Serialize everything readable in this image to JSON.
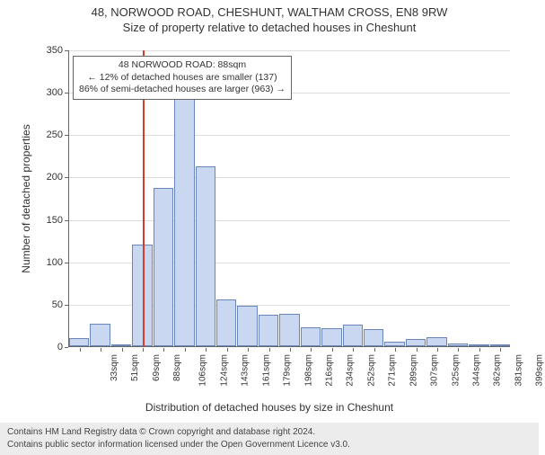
{
  "title_line1": "48, NORWOOD ROAD, CHESHUNT, WALTHAM CROSS, EN8 9RW",
  "title_line2": "Size of property relative to detached houses in Cheshunt",
  "ylabel": "Number of detached properties",
  "xlabel": "Distribution of detached houses by size in Cheshunt",
  "chart": {
    "type": "histogram",
    "ylim": [
      0,
      350
    ],
    "ytick_step": 50,
    "yticks": [
      0,
      50,
      100,
      150,
      200,
      250,
      300,
      350
    ],
    "xtick_labels": [
      "33sqm",
      "51sqm",
      "69sqm",
      "88sqm",
      "106sqm",
      "124sqm",
      "143sqm",
      "161sqm",
      "179sqm",
      "198sqm",
      "216sqm",
      "234sqm",
      "252sqm",
      "271sqm",
      "289sqm",
      "307sqm",
      "325sqm",
      "344sqm",
      "362sqm",
      "381sqm",
      "399sqm"
    ],
    "values": [
      10,
      27,
      2,
      120,
      187,
      292,
      212,
      55,
      48,
      37,
      38,
      22,
      21,
      25,
      20,
      5,
      9,
      11,
      3,
      0,
      2
    ],
    "bar_fill": "#c9d8f0",
    "bar_stroke": "#6a86b8",
    "grid_color": "#dddddd",
    "axis_color": "#666666",
    "background_color": "#ffffff",
    "reference_line": {
      "x_index": 3,
      "color": "#d43c2e"
    }
  },
  "annotation": {
    "line1": "48 NORWOOD ROAD: 88sqm",
    "line2": "← 12% of detached houses are smaller (137)",
    "line3": "86% of semi-detached houses are larger (963) →"
  },
  "footer": {
    "line1": "Contains HM Land Registry data © Crown copyright and database right 2024.",
    "line2": "Contains public sector information licensed under the Open Government Licence v3.0."
  },
  "fonts": {
    "title_size": 13,
    "label_size": 12,
    "tick_size": 11,
    "annotation_size": 10.5,
    "footer_size": 10
  }
}
